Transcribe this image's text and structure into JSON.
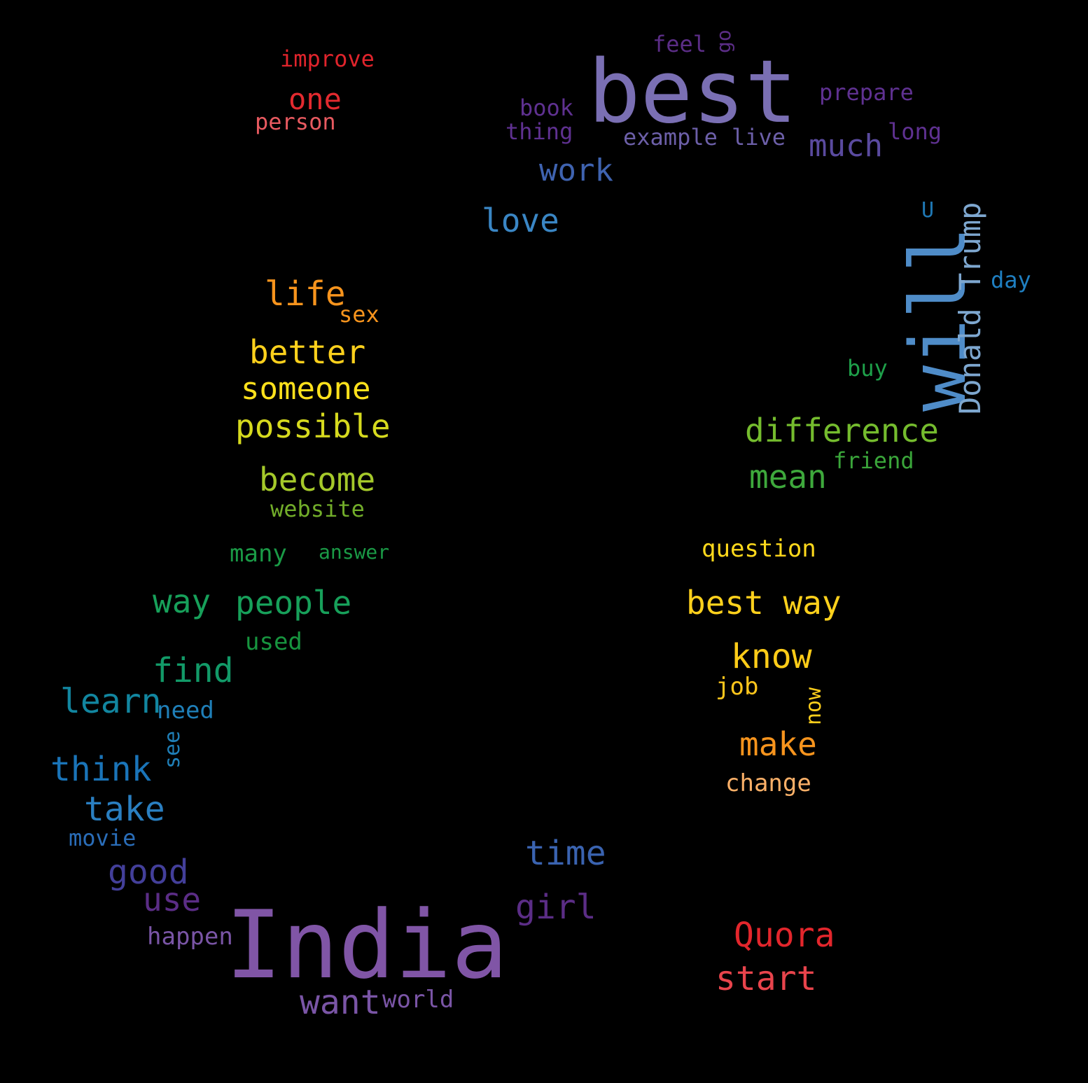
{
  "words": {
    "best": {
      "text": "best",
      "color": "#7a6fb3"
    },
    "india": {
      "text": "India",
      "color": "#8055a6"
    },
    "will": {
      "text": "will",
      "color": "#4f8cc8"
    },
    "donald_trump": {
      "text": "Donald Trump",
      "color": "#7ea7cf"
    },
    "improve": {
      "text": "improve",
      "color": "#e0242c"
    },
    "one": {
      "text": "one",
      "color": "#e32a2f"
    },
    "person": {
      "text": "person",
      "color": "#e85a60"
    },
    "feel": {
      "text": "feel",
      "color": "#5b2d86"
    },
    "go": {
      "text": "go",
      "color": "#5b2d86"
    },
    "prepare": {
      "text": "prepare",
      "color": "#5f3191"
    },
    "book": {
      "text": "book",
      "color": "#5f3191"
    },
    "thing": {
      "text": "thing",
      "color": "#5f3191"
    },
    "example": {
      "text": "example",
      "color": "#6c5fa8"
    },
    "live": {
      "text": "live",
      "color": "#6c5fa8"
    },
    "long": {
      "text": "long",
      "color": "#5f3191"
    },
    "much": {
      "text": "much",
      "color": "#5a4a9f"
    },
    "work": {
      "text": "work",
      "color": "#3f63b0"
    },
    "love": {
      "text": "love",
      "color": "#3a86c4"
    },
    "u": {
      "text": "U",
      "color": "#1f78b4"
    },
    "day": {
      "text": "day",
      "color": "#1f7fc1"
    },
    "life": {
      "text": "life",
      "color": "#f7941d"
    },
    "sex": {
      "text": "sex",
      "color": "#f7941d"
    },
    "better": {
      "text": "better",
      "color": "#ffd11c"
    },
    "buy": {
      "text": "buy",
      "color": "#1ea04a"
    },
    "someone": {
      "text": "someone",
      "color": "#ffe11c"
    },
    "possible": {
      "text": "possible",
      "color": "#d6da1e"
    },
    "difference": {
      "text": "difference",
      "color": "#75bc2e"
    },
    "friend": {
      "text": "friend",
      "color": "#3aa53a"
    },
    "become": {
      "text": "become",
      "color": "#a5c92a"
    },
    "mean": {
      "text": "mean",
      "color": "#3ea83c"
    },
    "website": {
      "text": "website",
      "color": "#72ad2a"
    },
    "question": {
      "text": "question",
      "color": "#ffd91c"
    },
    "many": {
      "text": "many",
      "color": "#1a9a46"
    },
    "answer": {
      "text": "answer",
      "color": "#1a9a46"
    },
    "way": {
      "text": "way",
      "color": "#17a05a"
    },
    "people": {
      "text": "people",
      "color": "#17a05a"
    },
    "best_way": {
      "text": "best way",
      "color": "#ffd11c"
    },
    "used": {
      "text": "used",
      "color": "#17953f"
    },
    "know": {
      "text": "know",
      "color": "#ffcc18"
    },
    "find": {
      "text": "find",
      "color": "#129a68"
    },
    "job": {
      "text": "job",
      "color": "#ffc61c"
    },
    "now": {
      "text": "now",
      "color": "#ffcf1c"
    },
    "learn": {
      "text": "learn",
      "color": "#1286a0"
    },
    "need": {
      "text": "need",
      "color": "#1f7fb8"
    },
    "see": {
      "text": "see",
      "color": "#1f7fb8"
    },
    "make": {
      "text": "make",
      "color": "#f7941d"
    },
    "think": {
      "text": "think",
      "color": "#1a74b8"
    },
    "change": {
      "text": "change",
      "color": "#fbb068"
    },
    "take": {
      "text": "take",
      "color": "#2a7fc1"
    },
    "movie": {
      "text": "movie",
      "color": "#2a6db8"
    },
    "time": {
      "text": "time",
      "color": "#3a63b0"
    },
    "good": {
      "text": "good",
      "color": "#433f9a"
    },
    "use": {
      "text": "use",
      "color": "#5b2d86"
    },
    "girl": {
      "text": "girl",
      "color": "#5b2d86"
    },
    "quora": {
      "text": "Quora",
      "color": "#e3262c"
    },
    "happen": {
      "text": "happen",
      "color": "#7a55a6"
    },
    "start": {
      "text": "start",
      "color": "#e8444c"
    },
    "want": {
      "text": "want",
      "color": "#7a55a6"
    },
    "world": {
      "text": "world",
      "color": "#7a55a6"
    }
  }
}
